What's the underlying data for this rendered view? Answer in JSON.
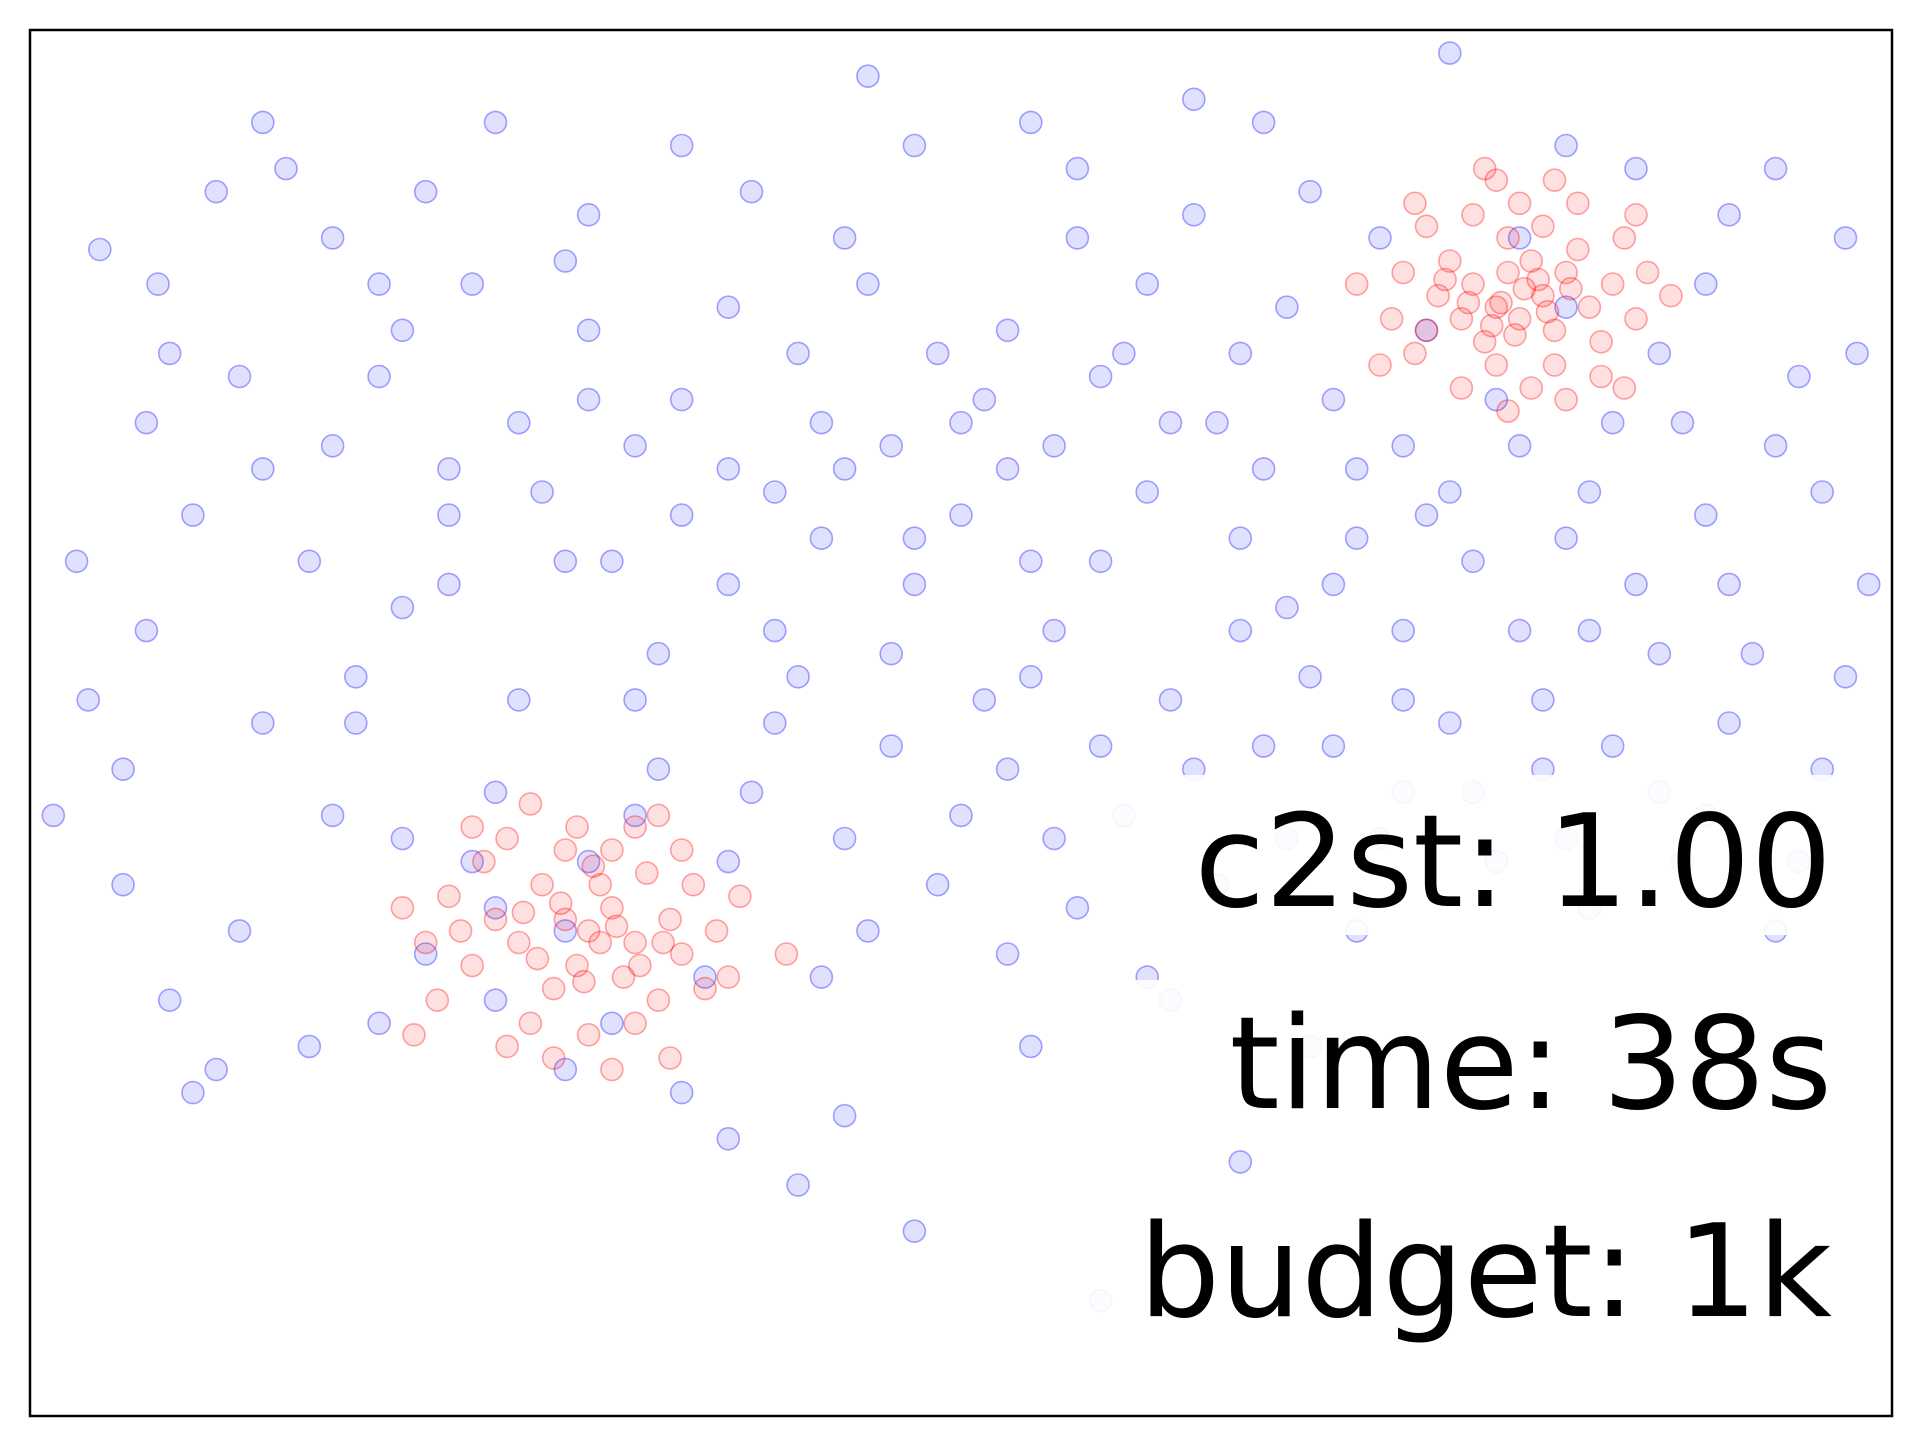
{
  "chart_data": {
    "type": "scatter",
    "title": "",
    "xlabel": "",
    "ylabel": "",
    "grid": false,
    "legend": "none",
    "xlim": [
      -4,
      4
    ],
    "ylim": [
      -4,
      2
    ],
    "colors": {
      "reference": "#0000ff",
      "posterior": "#ff0000",
      "frame": "#000000"
    },
    "series": [
      {
        "role": "reference",
        "values": [
          [
            -3.6,
            -1.2
          ],
          [
            -3.2,
            -2.5
          ],
          [
            -2.9,
            1.4
          ],
          [
            -2.4,
            0.7
          ],
          [
            -3.1,
            0.5
          ],
          [
            -3.8,
            -0.3
          ],
          [
            -3.45,
            0.9
          ],
          [
            -2.6,
            -0.8
          ],
          [
            -2.1,
            -1.6
          ],
          [
            -1.7,
            -1.9
          ],
          [
            -1.0,
            -2.8
          ],
          [
            -0.5,
            -2.7
          ],
          [
            -0.2,
            -3.2
          ],
          [
            0.6,
            -3.5
          ],
          [
            1.2,
            -2.9
          ],
          [
            0.9,
            -2.2
          ],
          [
            0.3,
            -2.4
          ],
          [
            1.7,
            -1.9
          ],
          [
            1.4,
            -1.5
          ],
          [
            1.0,
            1.7
          ],
          [
            0.5,
            1.4
          ],
          [
            -0.2,
            1.5
          ],
          [
            -0.9,
            1.3
          ],
          [
            -1.6,
            1.2
          ],
          [
            -2.0,
            1.6
          ],
          [
            -1.4,
            0.2
          ],
          [
            -0.6,
            0.3
          ],
          [
            0.2,
            0.1
          ],
          [
            0.9,
            0.3
          ],
          [
            1.6,
            0.4
          ],
          [
            2.4,
            0.2
          ],
          [
            3.0,
            0.6
          ],
          [
            3.5,
            0.2
          ],
          [
            3.8,
            1.1
          ],
          [
            3.3,
            1.2
          ],
          [
            2.6,
            1.5
          ],
          [
            2.1,
            1.9
          ],
          [
            1.8,
            1.1
          ],
          [
            2.9,
            -0.4
          ],
          [
            3.4,
            -0.7
          ],
          [
            3.7,
            -1.2
          ],
          [
            3.0,
            -1.3
          ],
          [
            2.5,
            -0.9
          ],
          [
            1.9,
            -0.6
          ],
          [
            1.2,
            -0.6
          ],
          [
            0.4,
            -0.6
          ],
          [
            -0.2,
            -0.4
          ],
          [
            -0.8,
            -0.6
          ],
          [
            -1.3,
            -0.7
          ],
          [
            -1.7,
            -0.3
          ],
          [
            -2.2,
            -0.1
          ],
          [
            -2.7,
            0.2
          ],
          [
            -3.3,
            -0.1
          ],
          [
            -3.9,
            -1.4
          ],
          [
            -3.6,
            -1.7
          ],
          [
            -3.1,
            -1.9
          ],
          [
            -2.7,
            -1.4
          ],
          [
            -1.5,
            -2.3
          ],
          [
            -0.9,
            -1.3
          ],
          [
            -0.3,
            -1.1
          ],
          [
            0.2,
            -1.2
          ],
          [
            0.7,
            -1.4
          ],
          [
            1.3,
            -1.1
          ],
          [
            1.9,
            -1.3
          ],
          [
            2.3,
            -1.6
          ],
          [
            2.7,
            -1.8
          ],
          [
            3.6,
            -1.6
          ],
          [
            3.9,
            -0.4
          ],
          [
            3.85,
            0.6
          ],
          [
            3.2,
            0.9
          ],
          [
            2.6,
            0.8
          ],
          [
            2.0,
            0.7
          ],
          [
            1.4,
            0.8
          ],
          [
            0.8,
            0.9
          ],
          [
            0.2,
            0.7
          ],
          [
            -0.4,
            0.9
          ],
          [
            -1.0,
            0.8
          ],
          [
            -1.6,
            0.7
          ],
          [
            -2.1,
            0.9
          ],
          [
            -2.7,
            1.1
          ],
          [
            -3.2,
            1.3
          ],
          [
            -3.7,
            1.05
          ],
          [
            -1.2,
            -0.1
          ],
          [
            -0.6,
            -0.2
          ],
          [
            0.0,
            -0.1
          ],
          [
            0.6,
            -0.3
          ],
          [
            1.2,
            -0.2
          ],
          [
            1.6,
            -0.4
          ],
          [
            2.2,
            -0.3
          ],
          [
            2.7,
            0.0
          ],
          [
            3.2,
            -0.1
          ],
          [
            -2.4,
            -0.5
          ],
          [
            -1.9,
            -0.9
          ],
          [
            -1.3,
            -1.2
          ],
          [
            -0.8,
            -1.0
          ],
          [
            -0.3,
            -0.7
          ],
          [
            0.3,
            -0.8
          ],
          [
            0.9,
            -0.9
          ],
          [
            1.5,
            -0.8
          ],
          [
            2.1,
            -1.0
          ],
          [
            -2.3,
            -2.0
          ],
          [
            -2.8,
            -2.4
          ],
          [
            -3.4,
            -2.2
          ],
          [
            -1.2,
            -2.6
          ],
          [
            -0.6,
            -2.1
          ],
          [
            -0.1,
            -1.7
          ],
          [
            0.5,
            -1.8
          ],
          [
            1.1,
            -1.7
          ],
          [
            1.5,
            -2.4
          ],
          [
            0.1,
            0.4
          ],
          [
            -0.5,
            0.1
          ],
          [
            0.6,
            0.5
          ],
          [
            1.1,
            0.3
          ],
          [
            -1.5,
            -0.3
          ],
          [
            -1.9,
            0.3
          ],
          [
            -2.5,
            0.5
          ],
          [
            -3.0,
            0.1
          ],
          [
            -3.4,
            0.6
          ],
          [
            -3.0,
            1.6
          ],
          [
            -2.3,
            1.3
          ],
          [
            -1.2,
            1.5
          ],
          [
            -0.4,
            1.8
          ],
          [
            0.3,
            1.6
          ],
          [
            1.3,
            1.6
          ],
          [
            2.4,
            1.1
          ],
          [
            2.9,
            1.4
          ],
          [
            3.5,
            1.4
          ],
          [
            3.7,
            0.0
          ],
          [
            3.3,
            -0.4
          ],
          [
            2.8,
            -1.1
          ],
          [
            2.4,
            -0.6
          ],
          [
            2.0,
            -0.1
          ],
          [
            1.7,
            0.1
          ],
          [
            0.4,
            0.2
          ],
          [
            -0.1,
            0.6
          ],
          [
            -0.7,
            0.6
          ],
          [
            -1.2,
            0.4
          ],
          [
            -1.8,
            0.0
          ],
          [
            -2.2,
            -0.4
          ],
          [
            -2.6,
            -1.0
          ],
          [
            -3.0,
            -1.0
          ],
          [
            -3.5,
            -0.6
          ],
          [
            -3.75,
            -0.9
          ],
          [
            -2.0,
            -1.3
          ],
          [
            -1.6,
            -1.6
          ],
          [
            -1.0,
            -1.6
          ],
          [
            -0.5,
            -1.5
          ],
          [
            0.0,
            -1.4
          ],
          [
            0.6,
            -1.1
          ],
          [
            1.0,
            -1.2
          ],
          [
            1.6,
            -1.1
          ],
          [
            2.2,
            -1.3
          ],
          [
            2.6,
            -1.5
          ],
          [
            3.1,
            -1.6
          ],
          [
            3.5,
            -1.9
          ],
          [
            -0.8,
            0.0
          ],
          [
            -0.3,
            0.2
          ],
          [
            0.3,
            -0.3
          ],
          [
            0.8,
            0.0
          ],
          [
            1.3,
            0.1
          ],
          [
            1.9,
            0.2
          ],
          [
            2.3,
            0.4
          ],
          [
            2.8,
            0.3
          ],
          [
            3.1,
            0.3
          ],
          [
            3.6,
            0.5
          ],
          [
            -1.4,
            -0.9
          ],
          [
            -0.2,
            -0.2
          ],
          [
            0.4,
            -1.5
          ],
          [
            1.8,
            -1.5
          ],
          [
            2.5,
            -1.2
          ],
          [
            -1.0,
            -0.4
          ],
          [
            -0.7,
            -0.8
          ],
          [
            0.1,
            -0.9
          ],
          [
            1.4,
            -0.5
          ],
          [
            -2.4,
            -1.5
          ],
          [
            -2.0,
            -1.8
          ],
          [
            -1.4,
            -1.4
          ],
          [
            -0.4,
            -1.9
          ],
          [
            0.2,
            -2.0
          ],
          [
            0.8,
            -2.1
          ],
          [
            -1.1,
            -2.1
          ],
          [
            -1.7,
            -2.5
          ],
          [
            -0.7,
            -3.0
          ],
          [
            -3.3,
            -2.6
          ],
          [
            -2.0,
            -2.2
          ],
          [
            -2.5,
            -2.3
          ],
          [
            1.7,
            -0.2
          ],
          [
            2.1,
            0.0
          ],
          [
            2.6,
            -0.2
          ],
          [
            3.0,
            -0.7
          ],
          [
            3.3,
            -1.0
          ],
          [
            3.8,
            -0.8
          ],
          [
            -0.5,
            1.1
          ],
          [
            0.5,
            1.1
          ],
          [
            1.0,
            1.2
          ],
          [
            1.5,
            1.3
          ],
          [
            -1.7,
            1.0
          ],
          [
            -2.5,
            0.9
          ],
          [
            -3.5,
            0.3
          ],
          [
            -2.8,
            -0.3
          ],
          [
            -2.2,
            0.1
          ],
          [
            -1.6,
            0.4
          ],
          [
            -1.0,
            0.1
          ],
          [
            0.0,
            0.3
          ],
          [
            0.7,
            0.6
          ],
          [
            1.2,
            0.6
          ],
          [
            2.7,
            -0.6
          ],
          [
            3.2,
            -1.4
          ],
          [
            1.9,
            -0.9
          ]
        ]
      },
      {
        "role": "posterior",
        "values": [
          [
            -1.7,
            -1.85
          ],
          [
            -1.6,
            -1.9
          ],
          [
            -1.5,
            -1.8
          ],
          [
            -1.4,
            -1.95
          ],
          [
            -1.8,
            -1.7
          ],
          [
            -1.9,
            -1.95
          ],
          [
            -1.55,
            -1.7
          ],
          [
            -1.65,
            -2.05
          ],
          [
            -1.45,
            -2.1
          ],
          [
            -1.75,
            -2.15
          ],
          [
            -2.0,
            -1.85
          ],
          [
            -1.35,
            -1.65
          ],
          [
            -1.25,
            -1.85
          ],
          [
            -1.2,
            -2.0
          ],
          [
            -1.3,
            -2.2
          ],
          [
            -2.05,
            -1.6
          ],
          [
            -2.1,
            -2.05
          ],
          [
            -1.85,
            -2.3
          ],
          [
            -1.6,
            -2.35
          ],
          [
            -1.4,
            -2.3
          ],
          [
            -1.15,
            -1.7
          ],
          [
            -1.5,
            -1.55
          ],
          [
            -1.7,
            -1.55
          ],
          [
            -1.95,
            -1.5
          ],
          [
            -2.2,
            -1.75
          ],
          [
            -1.05,
            -1.9
          ],
          [
            -1.1,
            -2.15
          ],
          [
            -2.25,
            -2.2
          ],
          [
            -1.95,
            -2.4
          ],
          [
            -1.65,
            -1.45
          ],
          [
            -1.4,
            -1.45
          ],
          [
            -1.2,
            -1.55
          ],
          [
            -2.3,
            -1.95
          ],
          [
            -1.0,
            -2.1
          ],
          [
            -1.75,
            -2.45
          ],
          [
            -1.5,
            -2.5
          ],
          [
            -2.1,
            -1.45
          ],
          [
            -2.4,
            -1.8
          ],
          [
            -0.95,
            -1.75
          ],
          [
            -1.55,
            -1.95
          ],
          [
            -1.72,
            -1.78
          ],
          [
            -1.48,
            -1.88
          ],
          [
            -1.62,
            -2.12
          ],
          [
            -1.82,
            -2.02
          ],
          [
            -1.38,
            -2.05
          ],
          [
            -1.88,
            -1.82
          ],
          [
            -1.58,
            -1.62
          ],
          [
            -1.28,
            -1.95
          ],
          [
            -2.15,
            -1.9
          ],
          [
            -2.35,
            -2.35
          ],
          [
            -0.75,
            -2.0
          ],
          [
            -1.25,
            -2.45
          ],
          [
            -1.85,
            -1.35
          ],
          [
            -1.3,
            -1.4
          ],
          [
            2.3,
            0.8
          ],
          [
            2.4,
            0.75
          ],
          [
            2.5,
            0.85
          ],
          [
            2.35,
            0.95
          ],
          [
            2.2,
            0.9
          ],
          [
            2.55,
            0.7
          ],
          [
            2.45,
            1.0
          ],
          [
            2.25,
            0.65
          ],
          [
            2.6,
            0.95
          ],
          [
            2.15,
            0.75
          ],
          [
            2.7,
            0.8
          ],
          [
            2.05,
            0.85
          ],
          [
            2.35,
            1.1
          ],
          [
            2.5,
            1.15
          ],
          [
            2.65,
            1.05
          ],
          [
            2.8,
            0.9
          ],
          [
            2.1,
            1.0
          ],
          [
            2.0,
            0.7
          ],
          [
            2.3,
            0.55
          ],
          [
            2.55,
            0.55
          ],
          [
            2.75,
            0.65
          ],
          [
            2.2,
            1.2
          ],
          [
            2.4,
            1.25
          ],
          [
            2.85,
            1.1
          ],
          [
            1.9,
            0.95
          ],
          [
            1.95,
            0.6
          ],
          [
            2.9,
            0.75
          ],
          [
            2.45,
            0.45
          ],
          [
            2.15,
            0.45
          ],
          [
            2.65,
            1.25
          ],
          [
            2.0,
            1.15
          ],
          [
            2.95,
            0.95
          ],
          [
            1.85,
            0.75
          ],
          [
            2.55,
            1.35
          ],
          [
            2.3,
            1.35
          ],
          [
            2.75,
            0.5
          ],
          [
            2.32,
            0.82
          ],
          [
            2.42,
            0.88
          ],
          [
            2.52,
            0.78
          ],
          [
            2.28,
            0.72
          ],
          [
            2.38,
            0.68
          ],
          [
            2.48,
            0.92
          ],
          [
            2.18,
            0.82
          ],
          [
            2.62,
            0.88
          ],
          [
            2.08,
            0.92
          ],
          [
            3.05,
            0.85
          ],
          [
            1.8,
            0.55
          ],
          [
            2.35,
            0.35
          ],
          [
            2.85,
            0.45
          ],
          [
            2.6,
            0.4
          ],
          [
            1.95,
            1.25
          ],
          [
            2.9,
            1.2
          ],
          [
            2.25,
            1.4
          ],
          [
            1.7,
            0.9
          ]
        ]
      }
    ],
    "annotations": [
      "c2st: 1.00",
      "time: 38s",
      "budget: 1k"
    ]
  }
}
